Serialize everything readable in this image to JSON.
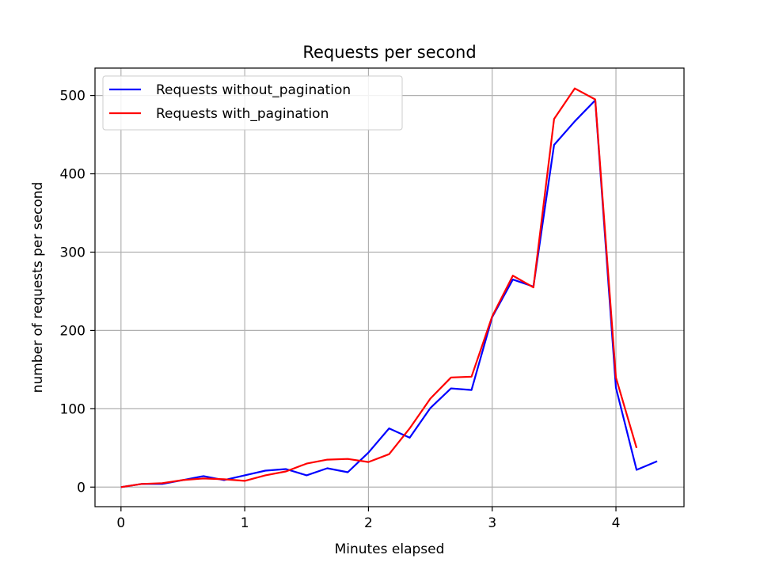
{
  "chart_data": {
    "type": "line",
    "title": "Requests per second",
    "xlabel": "Minutes elapsed",
    "ylabel": "number of requests per second",
    "xlim": [
      -0.21,
      4.55
    ],
    "ylim": [
      -25,
      535
    ],
    "xticks": [
      0,
      1,
      2,
      3,
      4
    ],
    "yticks": [
      0,
      100,
      200,
      300,
      400,
      500
    ],
    "grid": true,
    "legend_position": "top-left",
    "series": [
      {
        "name": "Requests without_pagination",
        "color": "#0000ff",
        "x": [
          0,
          0.167,
          0.333,
          0.5,
          0.667,
          0.833,
          1.0,
          1.167,
          1.333,
          1.5,
          1.667,
          1.833,
          2.0,
          2.167,
          2.333,
          2.5,
          2.667,
          2.833,
          3.0,
          3.167,
          3.333,
          3.5,
          3.667,
          3.833,
          4.0,
          4.167,
          4.333
        ],
        "y": [
          0,
          4,
          4,
          9,
          14,
          9,
          15,
          21,
          23,
          15,
          24,
          19,
          44,
          75,
          63,
          101,
          126,
          124,
          217,
          265,
          256,
          437,
          467,
          494,
          127,
          22,
          33
        ]
      },
      {
        "name": "Requests with_pagination",
        "color": "#ff0000",
        "x": [
          0,
          0.167,
          0.333,
          0.5,
          0.667,
          0.833,
          1.0,
          1.167,
          1.333,
          1.5,
          1.667,
          1.833,
          2.0,
          2.167,
          2.333,
          2.5,
          2.667,
          2.833,
          3.0,
          3.167,
          3.333,
          3.5,
          3.667,
          3.833,
          4.0,
          4.167
        ],
        "y": [
          0,
          4,
          5,
          9,
          11,
          10,
          8,
          15,
          20,
          30,
          35,
          36,
          32,
          42,
          75,
          113,
          140,
          141,
          218,
          270,
          255,
          470,
          509,
          495,
          140,
          50
        ]
      }
    ]
  }
}
